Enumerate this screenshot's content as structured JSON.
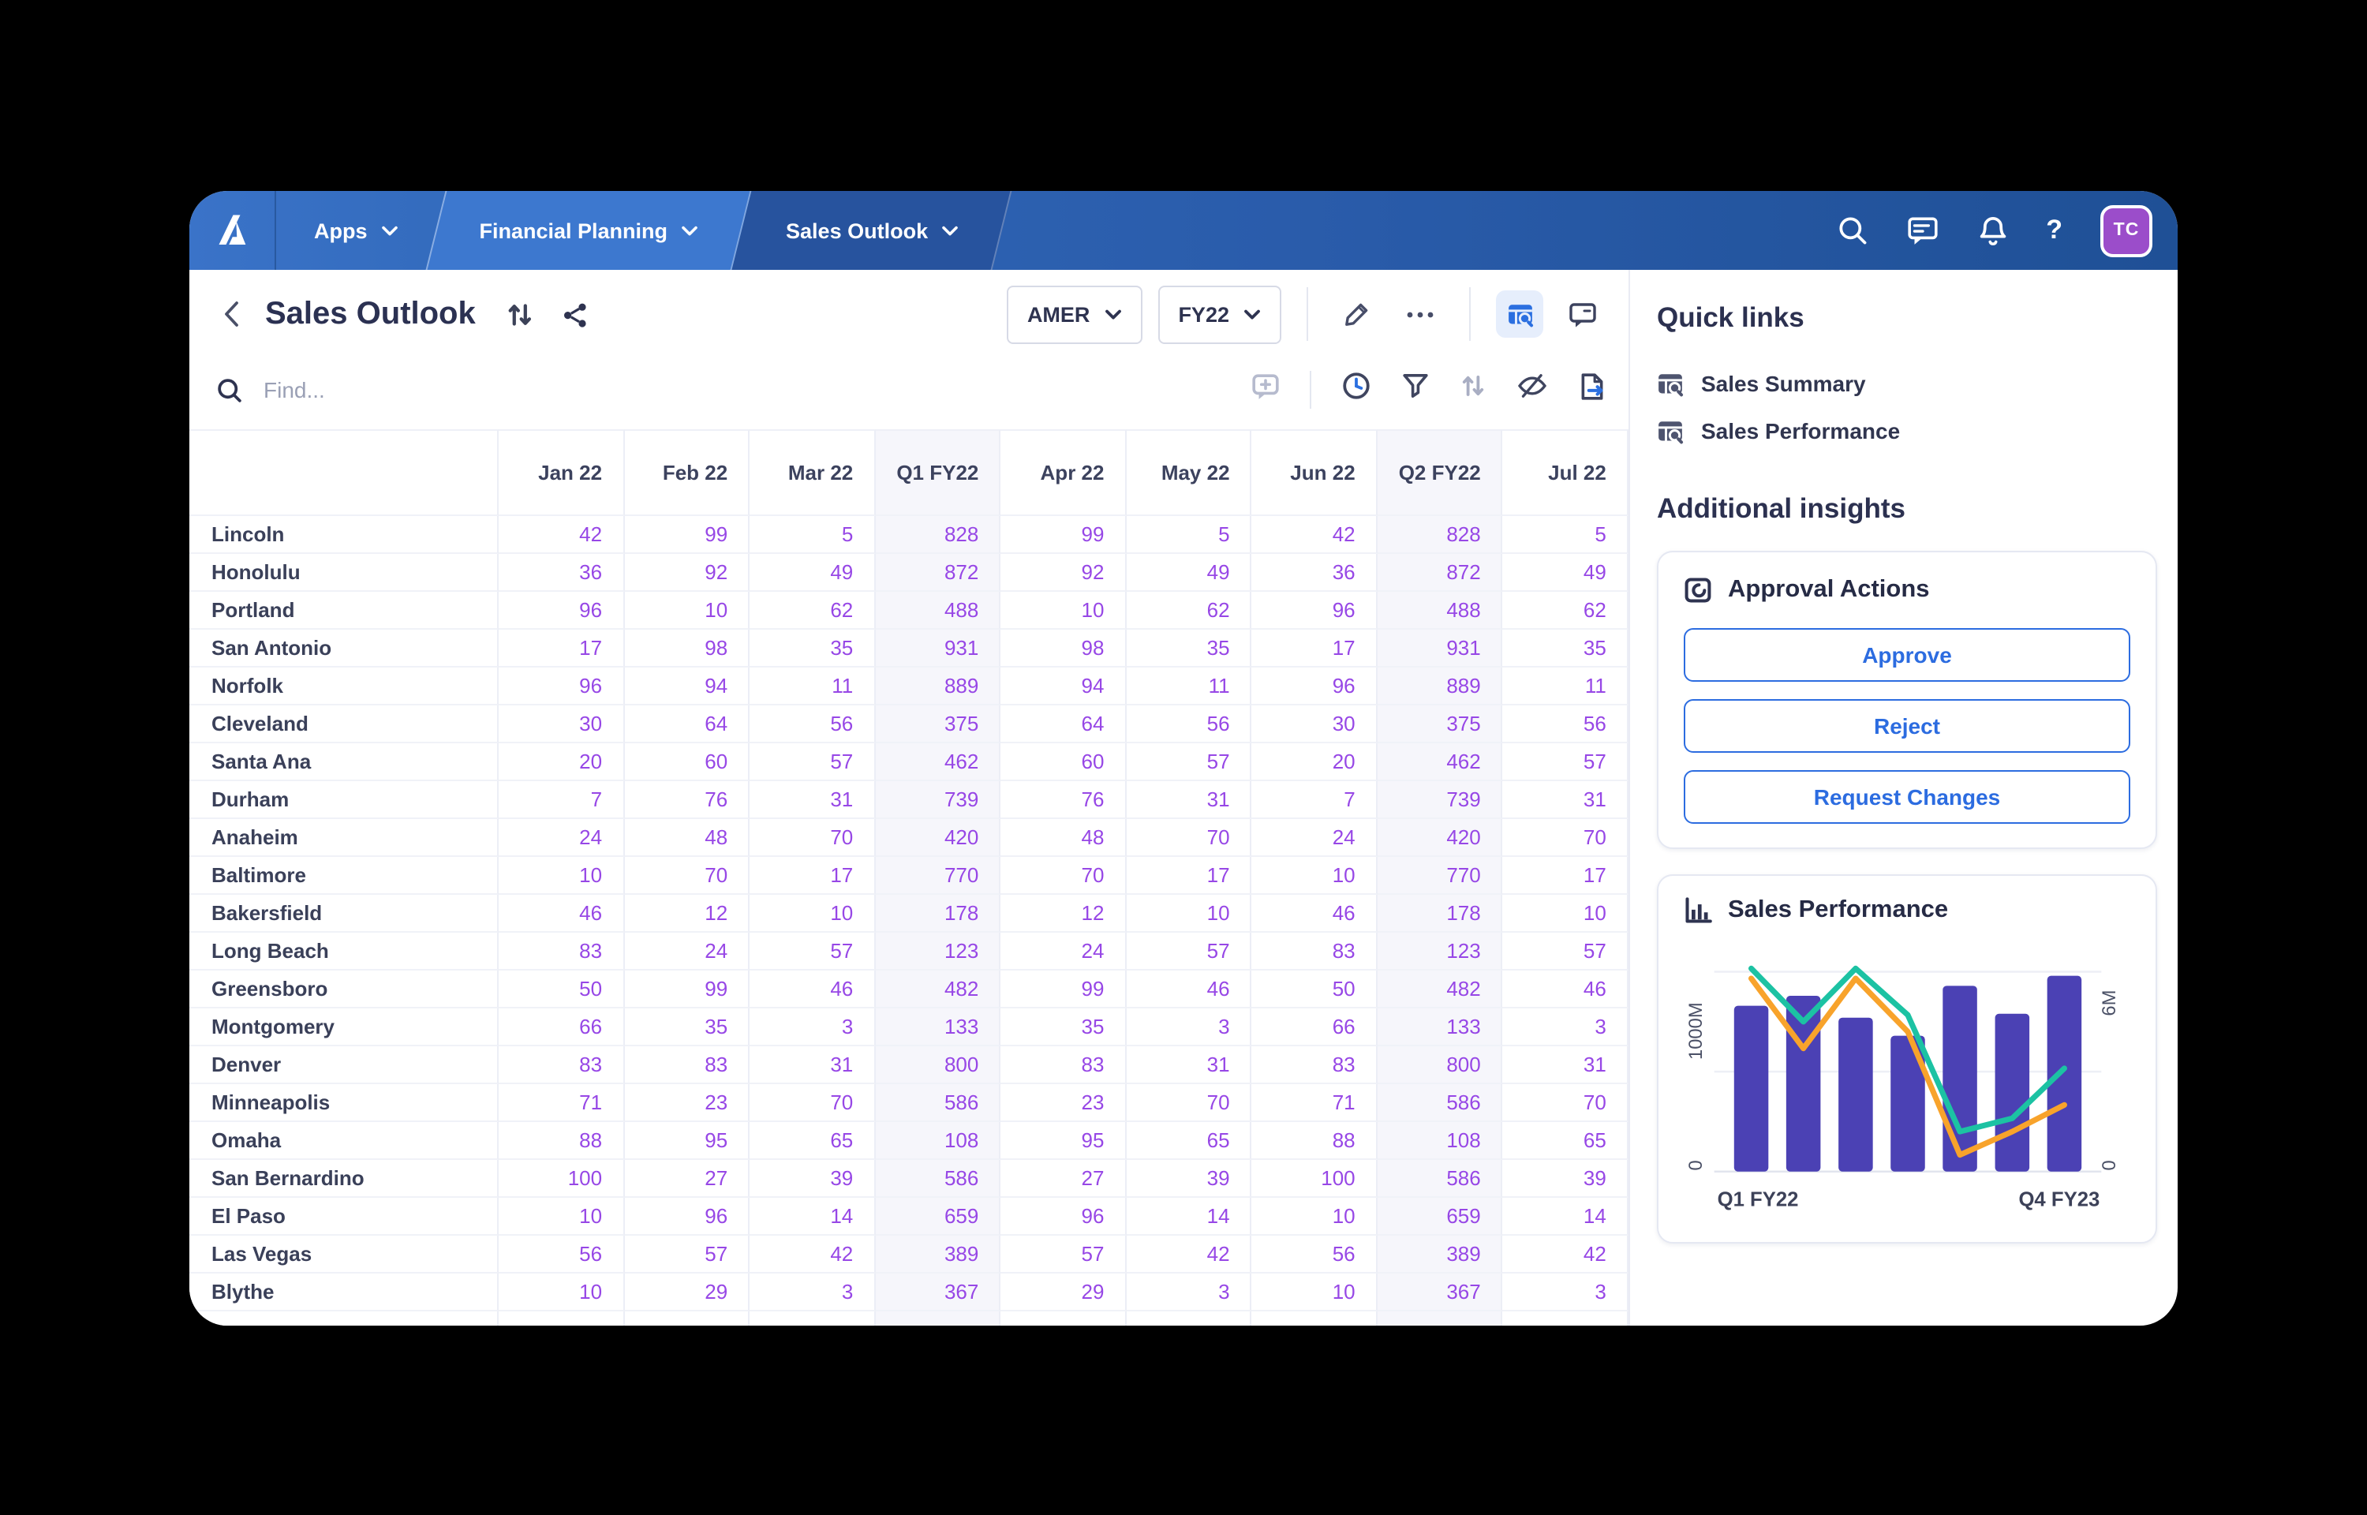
{
  "navbar": {
    "logo_name": "anaplan-logo",
    "apps_label": "Apps",
    "workspace_label": "Financial Planning",
    "page_label": "Sales Outlook",
    "right_icons": [
      "search-icon",
      "chat-icon",
      "bell-icon",
      "help-icon"
    ],
    "avatar_initials": "TC",
    "avatar_color": "#9b4dca"
  },
  "page_header": {
    "title": "Sales Outlook",
    "header_icons": [
      "back-icon",
      "sync-icon",
      "share-icon"
    ],
    "region_selector": {
      "value": "AMER"
    },
    "year_selector": {
      "value": "FY22"
    },
    "action_icons": [
      "pencil-icon",
      "ellipsis-icon",
      "insights-icon-active",
      "comment-icon"
    ]
  },
  "find_bar": {
    "placeholder": "Find...",
    "toolbar_icons": [
      "add-comment-icon",
      "history-icon",
      "filter-icon",
      "sort-icon",
      "hide-icon",
      "export-icon"
    ]
  },
  "table": {
    "columns": [
      {
        "label": "Jan 22",
        "quarter": false
      },
      {
        "label": "Feb 22",
        "quarter": false
      },
      {
        "label": "Mar 22",
        "quarter": false
      },
      {
        "label": "Q1 FY22",
        "quarter": true
      },
      {
        "label": "Apr 22",
        "quarter": false
      },
      {
        "label": "May 22",
        "quarter": false
      },
      {
        "label": "Jun 22",
        "quarter": false
      },
      {
        "label": "Q2 FY22",
        "quarter": true
      },
      {
        "label": "Jul 22",
        "quarter": false
      }
    ],
    "rows": [
      {
        "label": "Lincoln",
        "values": [
          42,
          99,
          5,
          828,
          99,
          5,
          42,
          828,
          5
        ]
      },
      {
        "label": "Honolulu",
        "values": [
          36,
          92,
          49,
          872,
          92,
          49,
          36,
          872,
          49
        ]
      },
      {
        "label": "Portland",
        "values": [
          96,
          10,
          62,
          488,
          10,
          62,
          96,
          488,
          62
        ]
      },
      {
        "label": "San Antonio",
        "values": [
          17,
          98,
          35,
          931,
          98,
          35,
          17,
          931,
          35
        ]
      },
      {
        "label": "Norfolk",
        "values": [
          96,
          94,
          11,
          889,
          94,
          11,
          96,
          889,
          11
        ]
      },
      {
        "label": "Cleveland",
        "values": [
          30,
          64,
          56,
          375,
          64,
          56,
          30,
          375,
          56
        ]
      },
      {
        "label": "Santa Ana",
        "values": [
          20,
          60,
          57,
          462,
          60,
          57,
          20,
          462,
          57
        ]
      },
      {
        "label": "Durham",
        "values": [
          7,
          76,
          31,
          739,
          76,
          31,
          7,
          739,
          31
        ]
      },
      {
        "label": "Anaheim",
        "values": [
          24,
          48,
          70,
          420,
          48,
          70,
          24,
          420,
          70
        ]
      },
      {
        "label": "Baltimore",
        "values": [
          10,
          70,
          17,
          770,
          70,
          17,
          10,
          770,
          17
        ]
      },
      {
        "label": "Bakersfield",
        "values": [
          46,
          12,
          10,
          178,
          12,
          10,
          46,
          178,
          10
        ]
      },
      {
        "label": "Long Beach",
        "values": [
          83,
          24,
          57,
          123,
          24,
          57,
          83,
          123,
          57
        ]
      },
      {
        "label": "Greensboro",
        "values": [
          50,
          99,
          46,
          482,
          99,
          46,
          50,
          482,
          46
        ]
      },
      {
        "label": "Montgomery",
        "values": [
          66,
          35,
          3,
          133,
          35,
          3,
          66,
          133,
          3
        ]
      },
      {
        "label": "Denver",
        "values": [
          83,
          83,
          31,
          800,
          83,
          31,
          83,
          800,
          31
        ]
      },
      {
        "label": "Minneapolis",
        "values": [
          71,
          23,
          70,
          586,
          23,
          70,
          71,
          586,
          70
        ]
      },
      {
        "label": "Omaha",
        "values": [
          88,
          95,
          65,
          108,
          95,
          65,
          88,
          108,
          65
        ]
      },
      {
        "label": "San Bernardino",
        "values": [
          100,
          27,
          39,
          586,
          27,
          39,
          100,
          586,
          39
        ]
      },
      {
        "label": "El Paso",
        "values": [
          10,
          96,
          14,
          659,
          96,
          14,
          10,
          659,
          14
        ]
      },
      {
        "label": "Las Vegas",
        "values": [
          56,
          57,
          42,
          389,
          57,
          42,
          56,
          389,
          42
        ]
      },
      {
        "label": "Blythe",
        "values": [
          10,
          29,
          3,
          367,
          29,
          3,
          10,
          367,
          3
        ]
      }
    ],
    "value_color": "#9747e6"
  },
  "sidebar": {
    "quick_links_title": "Quick links",
    "quick_links": [
      {
        "label": "Sales Summary"
      },
      {
        "label": "Sales Performance"
      }
    ],
    "insights_title": "Additional insights",
    "approval": {
      "title": "Approval Actions",
      "buttons": [
        "Approve",
        "Reject",
        "Request Changes"
      ],
      "button_color": "#2c6ce0"
    },
    "chart_title": "Sales Performance",
    "chart_data": {
      "type": "combo",
      "title": "Sales Performance",
      "x_labels": [
        "Q1 FY22",
        "Q4 FY23"
      ],
      "left_axis": {
        "top_label": "1000M",
        "bottom_label": "0",
        "max": 1000
      },
      "right_axis": {
        "top_label": "6M",
        "bottom_label": "0",
        "max": 6
      },
      "grid": true,
      "legend": false,
      "bars": {
        "name": "sales-bars",
        "color": "#4b41b4",
        "axis": "left",
        "values": [
          830,
          880,
          770,
          680,
          930,
          790,
          980
        ]
      },
      "lines": [
        {
          "name": "teal-line",
          "color": "#1cc2a3",
          "axis": "right",
          "values": [
            6.1,
            4.5,
            6.1,
            4.7,
            1.2,
            1.6,
            3.1
          ]
        },
        {
          "name": "orange-line",
          "color": "#f8a32b",
          "axis": "right",
          "values": [
            5.8,
            3.7,
            5.8,
            4.2,
            0.5,
            1.2,
            2.0
          ]
        }
      ]
    }
  }
}
